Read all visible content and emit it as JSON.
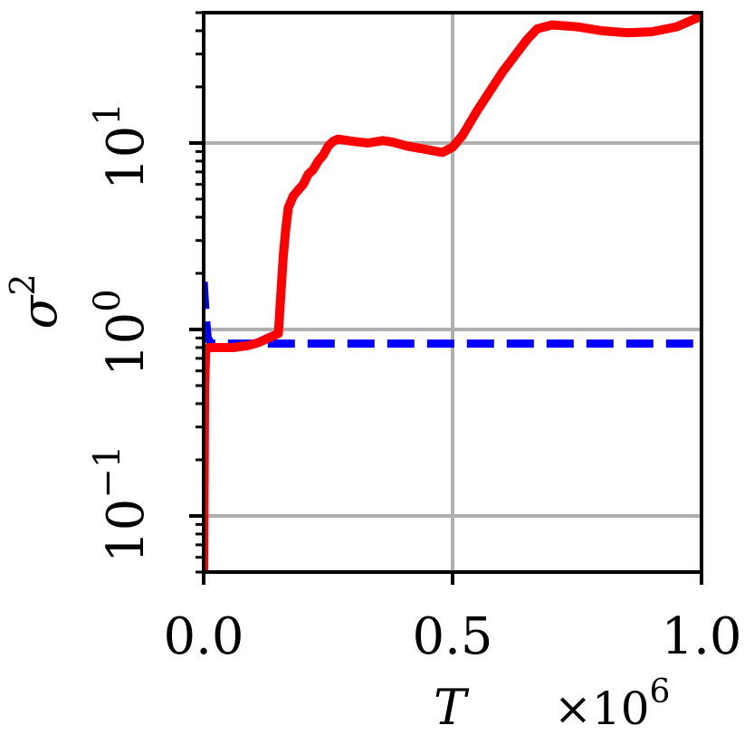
{
  "chart_data": {
    "type": "line",
    "title": "",
    "xlabel": "T",
    "ylabel": "σ",
    "ylabel_superscript": "2",
    "x_offset_label": "×10",
    "x_offset_exponent": "6",
    "x_scale_factor": 1000000,
    "xlim": [
      0.0,
      1.0
    ],
    "ylim": [
      0.05,
      50
    ],
    "yscale": "log",
    "grid": true,
    "x_ticks": [
      0.0,
      0.5,
      1.0
    ],
    "x_tick_labels": [
      "0.0",
      "0.5",
      "1.0"
    ],
    "y_ticks": [
      0.1,
      1,
      10
    ],
    "y_tick_labels": [
      {
        "base": "10",
        "exp": "−1"
      },
      {
        "base": "10",
        "exp": "0"
      },
      {
        "base": "10",
        "exp": "1"
      }
    ],
    "series": [
      {
        "color": "#ff0000",
        "style": "solid",
        "x": [
          0.0,
          0.002,
          0.004,
          0.006,
          0.01,
          0.02,
          0.04,
          0.06,
          0.09,
          0.11,
          0.13,
          0.15,
          0.16,
          0.165,
          0.17,
          0.18,
          0.19,
          0.2,
          0.21,
          0.22,
          0.23,
          0.24,
          0.25,
          0.26,
          0.27,
          0.28,
          0.3,
          0.33,
          0.36,
          0.38,
          0.41,
          0.45,
          0.48,
          0.5,
          0.52,
          0.55,
          0.6,
          0.65,
          0.67,
          0.7,
          0.75,
          0.8,
          0.85,
          0.9,
          0.95,
          1.0
        ],
        "y": [
          0.05,
          0.5,
          0.75,
          0.78,
          0.8,
          0.8,
          0.8,
          0.8,
          0.82,
          0.85,
          0.9,
          0.95,
          2.5,
          3.5,
          4.5,
          5.2,
          5.6,
          6.0,
          6.8,
          7.2,
          8.0,
          8.6,
          9.6,
          10.2,
          10.5,
          10.4,
          10.2,
          10.0,
          10.3,
          10.1,
          9.6,
          9.2,
          8.9,
          9.5,
          11.0,
          15.0,
          24.0,
          36.0,
          41.0,
          43.0,
          42.0,
          40.0,
          39.0,
          39.5,
          42.0,
          48.0
        ]
      },
      {
        "color": "#0000ff",
        "style": "dashed",
        "x": [
          0.0,
          0.004,
          0.008,
          0.015,
          0.03,
          0.06,
          0.1,
          0.2,
          0.3,
          0.5,
          0.7,
          1.0
        ],
        "y": [
          1.8,
          1.2,
          0.9,
          0.84,
          0.84,
          0.84,
          0.84,
          0.84,
          0.84,
          0.84,
          0.84,
          0.84
        ]
      }
    ]
  }
}
